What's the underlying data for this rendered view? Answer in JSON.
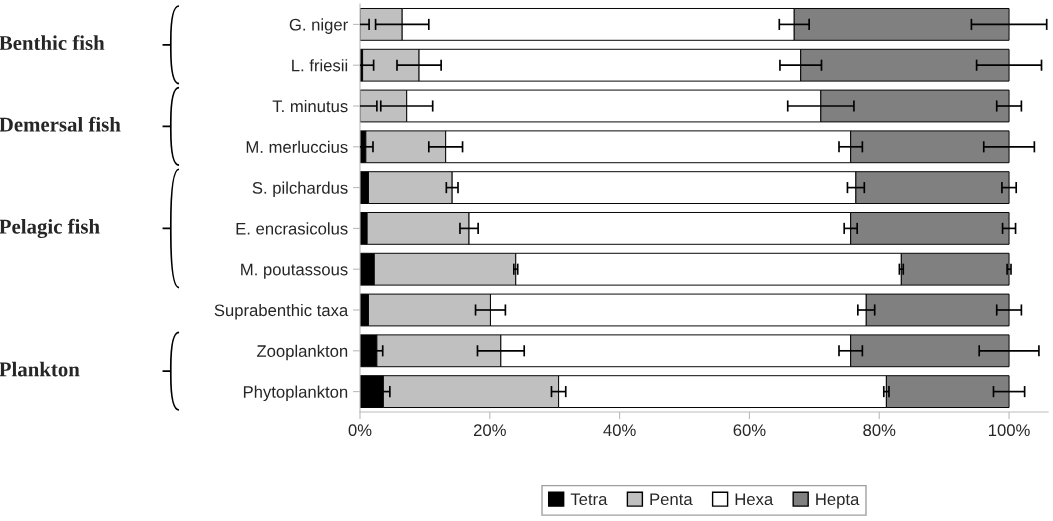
{
  "chart_data": {
    "type": "bar",
    "orientation": "horizontal",
    "stacked": true,
    "categories": [
      "G. niger",
      "L. friesii",
      "T. minutus",
      "M. merluccius",
      "S. pilchardus",
      "E. encrasicolus",
      "M. poutassous",
      "Suprabenthic taxa",
      "Zooplankton",
      "Phytoplankton"
    ],
    "series": [
      {
        "name": "Tetra",
        "color": "#000000",
        "values": [
          0,
          0.4,
          0,
          0.9,
          1.3,
          1.1,
          2.2,
          1.3,
          2.6,
          3.6
        ],
        "errors": [
          1.4,
          1.7,
          2.6,
          1.1,
          null,
          null,
          null,
          null,
          0.9,
          1.0
        ]
      },
      {
        "name": "Penta",
        "color": "#c0c0c0",
        "values": [
          6.5,
          8.7,
          7.2,
          12.3,
          12.9,
          15.7,
          21.8,
          18.8,
          19.1,
          27.0
        ],
        "errors": [
          4.1,
          3.4,
          4.0,
          2.6,
          0.9,
          1.4,
          0.3,
          2.3,
          3.6,
          1.1
        ]
      },
      {
        "name": "Hexa",
        "color": "#ffffff",
        "values": [
          60.4,
          58.8,
          63.8,
          62.4,
          62.2,
          58.8,
          59.4,
          57.9,
          53.9,
          50.5
        ],
        "errors": [
          2.3,
          3.2,
          5.1,
          1.8,
          1.3,
          1.0,
          0.3,
          1.3,
          1.8,
          0.4
        ]
      },
      {
        "name": "Hepta",
        "color": "#808080",
        "values": [
          33.1,
          32.1,
          29.0,
          24.4,
          23.6,
          24.4,
          16.6,
          22.0,
          24.4,
          18.9
        ],
        "errors": [
          5.8,
          5.0,
          1.9,
          3.9,
          1.1,
          1.0,
          0.3,
          1.9,
          4.6,
          2.4
        ]
      }
    ],
    "xlim": [
      0,
      106
    ],
    "xticks": [
      {
        "value": 0,
        "label": "0%"
      },
      {
        "value": 20,
        "label": "20%"
      },
      {
        "value": 40,
        "label": "40%"
      },
      {
        "value": 60,
        "label": "60%"
      },
      {
        "value": 80,
        "label": "80%"
      },
      {
        "value": 100,
        "label": "100%"
      }
    ],
    "annotations": [
      "Benthic fish",
      "Demersal fish",
      "Pelagic fish",
      "Plankton"
    ],
    "legend": "bottom",
    "grid": false
  }
}
